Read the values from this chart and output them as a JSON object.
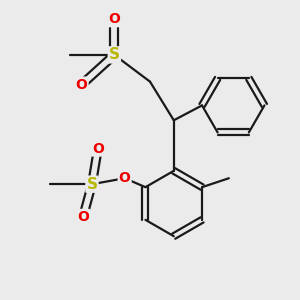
{
  "bg_color": "#ebebeb",
  "bond_color": "#1a1a1a",
  "sulfur_color": "#b8b800",
  "oxygen_color": "#ee0000",
  "line_width": 1.6,
  "figsize": [
    3.0,
    3.0
  ],
  "dpi": 100,
  "xlim": [
    0,
    10
  ],
  "ylim": [
    0,
    10
  ]
}
